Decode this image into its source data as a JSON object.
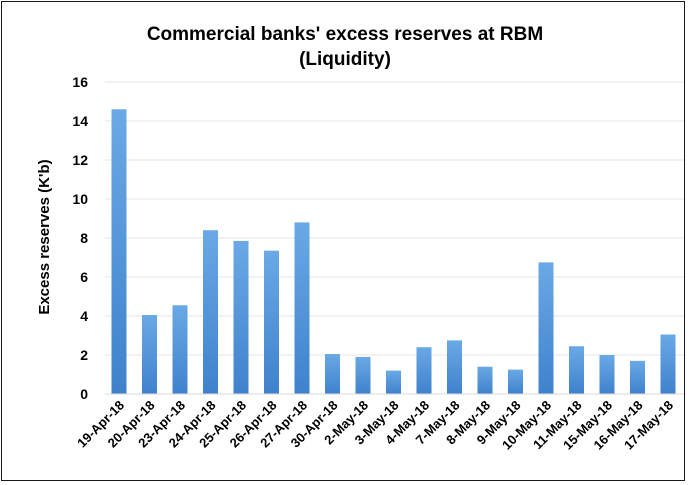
{
  "chart_data": {
    "type": "bar",
    "title": "Commercial banks' excess reserves at RBM",
    "subtitle": "(Liquidity)",
    "xlabel": "",
    "ylabel": "Excess reserves (K'b)",
    "ylim": [
      0,
      16
    ],
    "yticks": [
      "0",
      "2",
      "4",
      "6",
      "8",
      "10",
      "12",
      "14",
      "16"
    ],
    "grid": true,
    "legend": "none",
    "bar_color": "#4a8fd4",
    "categories": [
      "19-Apr-18",
      "20-Apr-18",
      "23-Apr-18",
      "24-Apr-18",
      "25-Apr-18",
      "26-Apr-18",
      "27-Apr-18",
      "30-Apr-18",
      "2-May-18",
      "3-May-18",
      "4-May-18",
      "7-May-18",
      "8-May-18",
      "9-May-18",
      "10-May-18",
      "11-May-18",
      "15-May-18",
      "16-May-18",
      "17-May-18"
    ],
    "values": [
      14.6,
      4.05,
      4.55,
      8.4,
      7.85,
      7.35,
      8.8,
      2.05,
      1.9,
      1.2,
      2.4,
      2.75,
      1.4,
      1.25,
      6.75,
      2.45,
      2.0,
      1.7,
      3.05
    ]
  }
}
